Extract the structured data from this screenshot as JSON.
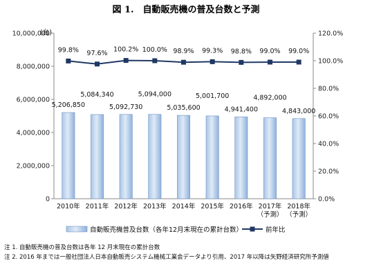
{
  "chart_data": {
    "title": "図 1.　自動販売機の普及台数と予測",
    "y_left_unit": "(台)",
    "type": "bar+line",
    "categories": [
      "2010年",
      "2011年",
      "2012年",
      "2013年",
      "2014年",
      "2015年",
      "2016年",
      "2017年\n（予測）",
      "2018年\n（予測）"
    ],
    "series": [
      {
        "name": "自動販売機普及台数（各年12月末現在の累計台数）",
        "type": "bar",
        "axis": "left",
        "values": [
          5206850,
          5084340,
          5092730,
          5094000,
          5035600,
          5001700,
          4941400,
          4892000,
          4843000
        ],
        "labels": [
          "5,206,850",
          "5,084,340",
          "5,092,730",
          "5,094,000",
          "5,035,600",
          "5,001,700",
          "4,941,400",
          "4,892,000",
          "4,843,000"
        ]
      },
      {
        "name": "前年比",
        "type": "line",
        "axis": "right",
        "values": [
          99.8,
          97.6,
          100.2,
          100.0,
          98.9,
          99.3,
          98.8,
          99.0,
          99.0
        ],
        "labels": [
          "99.8%",
          "97.6%",
          "100.2%",
          "100.0%",
          "98.9%",
          "99.3%",
          "98.8%",
          "99.0%",
          "99.0%"
        ]
      }
    ],
    "y_left": {
      "min": 0,
      "max": 10000000,
      "ticks": [
        "0",
        "2,000,000",
        "4,000,000",
        "6,000,000",
        "8,000,000",
        "10,000,000"
      ]
    },
    "y_right": {
      "min": 0,
      "max": 120,
      "ticks": [
        "0.0%",
        "20.0%",
        "40.0%",
        "60.0%",
        "80.0%",
        "100.0%",
        "120.0%"
      ]
    },
    "grid": false,
    "legend_position": "bottom",
    "colors": {
      "bar_light": "#dbe8f6",
      "bar_dark": "#8fb2dc",
      "bar_edge": "#6e93c4",
      "line": "#1f3864"
    }
  },
  "notes": [
    "注 1.  自動販売機の普及台数は各年 12 月末現在の累計台数",
    "注 2.  2016 年までは一般社団法人日本自動販売システム機械工業会データより引用、2017 年以降は矢野経済研究所予測値"
  ]
}
